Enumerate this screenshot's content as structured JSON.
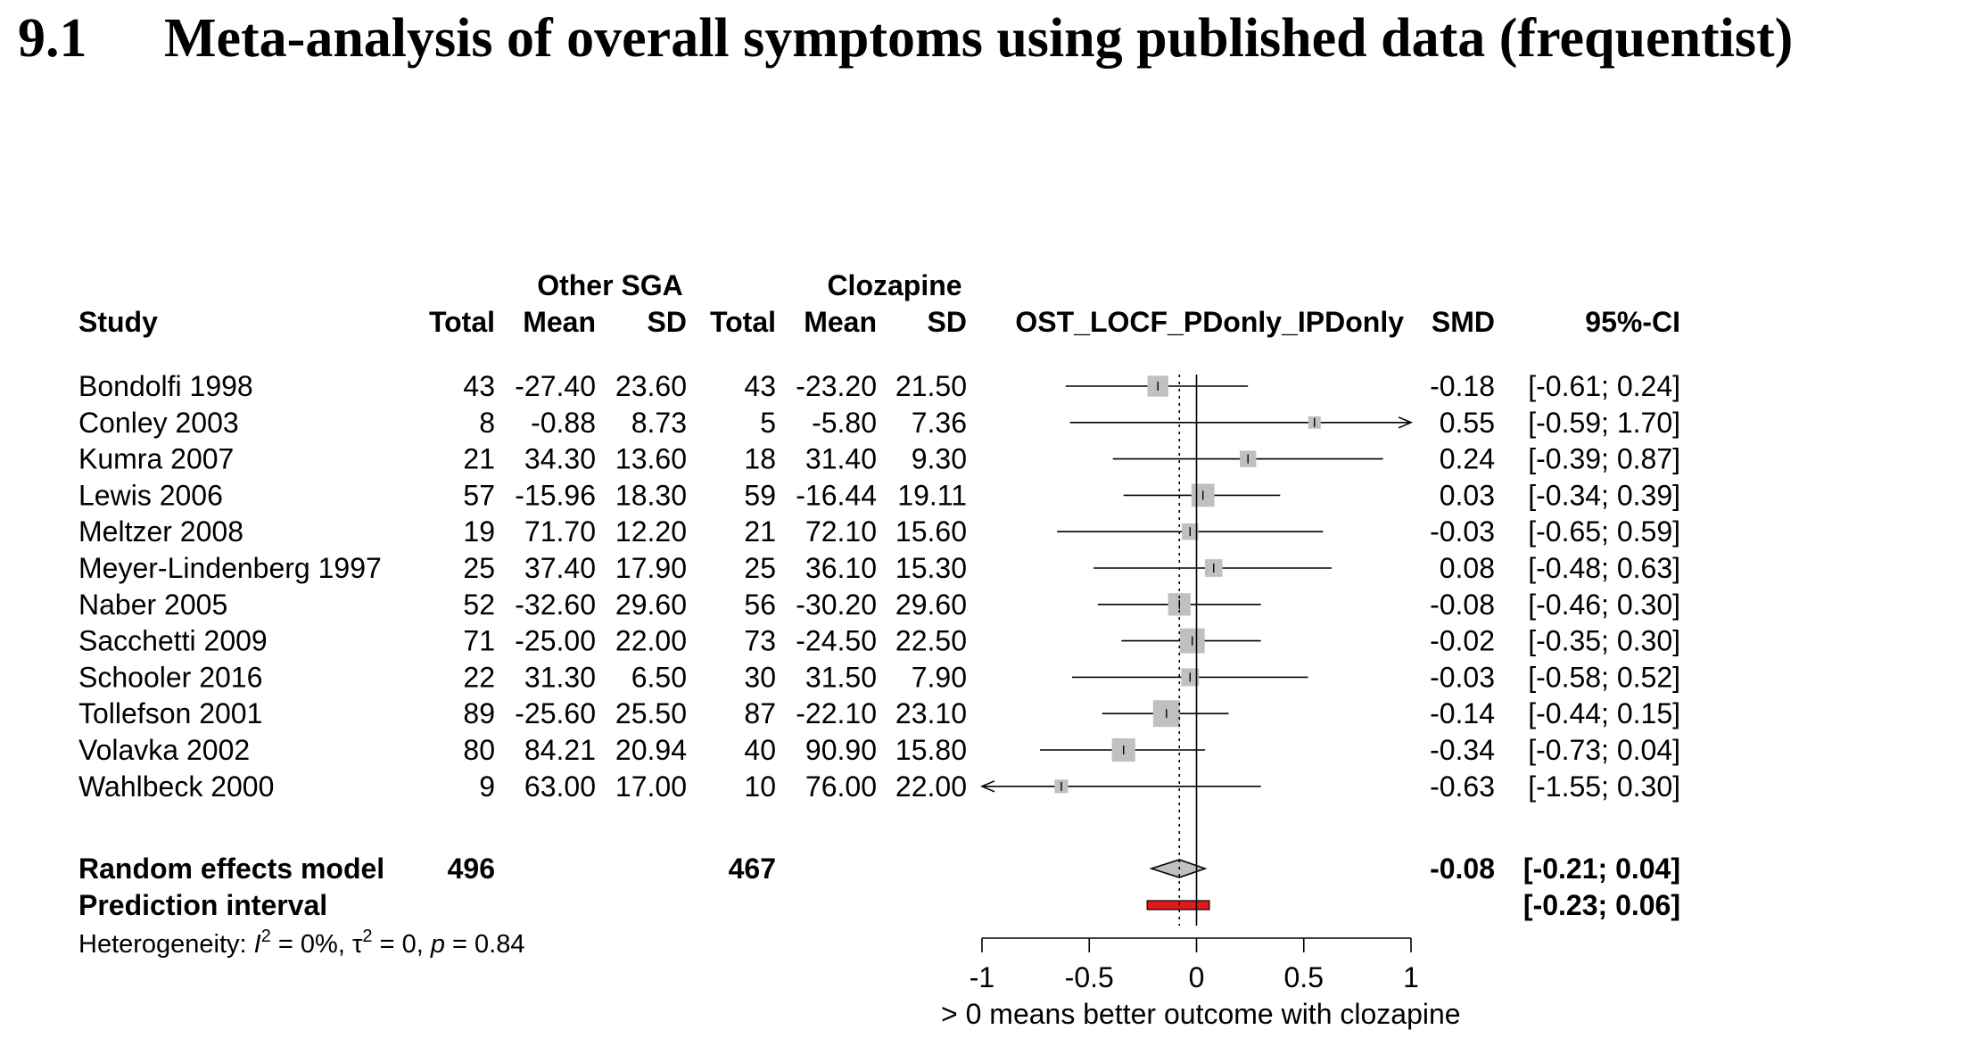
{
  "section": {
    "number": "9.1",
    "title": "Meta-analysis of overall symptoms using published data (frequentist)"
  },
  "chart_data": {
    "type": "forest",
    "group_headers": {
      "group1": "Other SGA",
      "group2": "Clozapine"
    },
    "column_headers": {
      "study": "Study",
      "total1": "Total",
      "mean1": "Mean",
      "sd1": "SD",
      "total2": "Total",
      "mean2": "Mean",
      "sd2": "SD",
      "plot": "OST_LOCF_PDonly_IPDonly",
      "smd": "SMD",
      "ci": "95%-CI"
    },
    "studies": [
      {
        "study": "Bondolfi 1998",
        "total1": "43",
        "mean1": "-27.40",
        "sd1": "23.60",
        "total2": "43",
        "mean2": "-23.20",
        "sd2": "21.50",
        "smd_label": "-0.18",
        "ci_label": "[-0.61; 0.24]",
        "smd": -0.18,
        "lower": -0.61,
        "upper": 0.24
      },
      {
        "study": "Conley 2003",
        "total1": "8",
        "mean1": "-0.88",
        "sd1": "8.73",
        "total2": "5",
        "mean2": "-5.80",
        "sd2": "7.36",
        "smd_label": "0.55",
        "ci_label": "[-0.59; 1.70]",
        "smd": 0.55,
        "lower": -0.59,
        "upper": 1.7
      },
      {
        "study": "Kumra 2007",
        "total1": "21",
        "mean1": "34.30",
        "sd1": "13.60",
        "total2": "18",
        "mean2": "31.40",
        "sd2": "9.30",
        "smd_label": "0.24",
        "ci_label": "[-0.39; 0.87]",
        "smd": 0.24,
        "lower": -0.39,
        "upper": 0.87
      },
      {
        "study": "Lewis 2006",
        "total1": "57",
        "mean1": "-15.96",
        "sd1": "18.30",
        "total2": "59",
        "mean2": "-16.44",
        "sd2": "19.11",
        "smd_label": "0.03",
        "ci_label": "[-0.34; 0.39]",
        "smd": 0.03,
        "lower": -0.34,
        "upper": 0.39
      },
      {
        "study": "Meltzer 2008",
        "total1": "19",
        "mean1": "71.70",
        "sd1": "12.20",
        "total2": "21",
        "mean2": "72.10",
        "sd2": "15.60",
        "smd_label": "-0.03",
        "ci_label": "[-0.65; 0.59]",
        "smd": -0.03,
        "lower": -0.65,
        "upper": 0.59
      },
      {
        "study": "Meyer-Lindenberg 1997",
        "total1": "25",
        "mean1": "37.40",
        "sd1": "17.90",
        "total2": "25",
        "mean2": "36.10",
        "sd2": "15.30",
        "smd_label": "0.08",
        "ci_label": "[-0.48; 0.63]",
        "smd": 0.08,
        "lower": -0.48,
        "upper": 0.63
      },
      {
        "study": "Naber 2005",
        "total1": "52",
        "mean1": "-32.60",
        "sd1": "29.60",
        "total2": "56",
        "mean2": "-30.20",
        "sd2": "29.60",
        "smd_label": "-0.08",
        "ci_label": "[-0.46; 0.30]",
        "smd": -0.08,
        "lower": -0.46,
        "upper": 0.3
      },
      {
        "study": "Sacchetti 2009",
        "total1": "71",
        "mean1": "-25.00",
        "sd1": "22.00",
        "total2": "73",
        "mean2": "-24.50",
        "sd2": "22.50",
        "smd_label": "-0.02",
        "ci_label": "[-0.35; 0.30]",
        "smd": -0.02,
        "lower": -0.35,
        "upper": 0.3
      },
      {
        "study": "Schooler 2016",
        "total1": "22",
        "mean1": "31.30",
        "sd1": "6.50",
        "total2": "30",
        "mean2": "31.50",
        "sd2": "7.90",
        "smd_label": "-0.03",
        "ci_label": "[-0.58; 0.52]",
        "smd": -0.03,
        "lower": -0.58,
        "upper": 0.52
      },
      {
        "study": "Tollefson 2001",
        "total1": "89",
        "mean1": "-25.60",
        "sd1": "25.50",
        "total2": "87",
        "mean2": "-22.10",
        "sd2": "23.10",
        "smd_label": "-0.14",
        "ci_label": "[-0.44; 0.15]",
        "smd": -0.14,
        "lower": -0.44,
        "upper": 0.15
      },
      {
        "study": "Volavka 2002",
        "total1": "80",
        "mean1": "84.21",
        "sd1": "20.94",
        "total2": "40",
        "mean2": "90.90",
        "sd2": "15.80",
        "smd_label": "-0.34",
        "ci_label": "[-0.73; 0.04]",
        "smd": -0.34,
        "lower": -0.73,
        "upper": 0.04
      },
      {
        "study": "Wahlbeck 2000",
        "total1": "9",
        "mean1": "63.00",
        "sd1": "17.00",
        "total2": "10",
        "mean2": "76.00",
        "sd2": "22.00",
        "smd_label": "-0.63",
        "ci_label": "[-1.55; 0.30]",
        "smd": -0.63,
        "lower": -1.55,
        "upper": 0.3
      }
    ],
    "random_effects": {
      "label": "Random effects model",
      "total1": "496",
      "total2": "467",
      "smd_label": "-0.08",
      "ci_label": "[-0.21; 0.04]",
      "smd": -0.08,
      "lower": -0.21,
      "upper": 0.04
    },
    "prediction_interval": {
      "label": "Prediction interval",
      "ci_label": "[-0.23; 0.06]",
      "lower": -0.23,
      "upper": 0.06
    },
    "heterogeneity": {
      "prefix": "Heterogeneity: ",
      "i2_symbol": "I",
      "i2_sup": "2",
      "i2_value": " = 0%, ",
      "tau_symbol": "τ",
      "tau_sup": "2",
      "tau_value": " = 0, ",
      "p_symbol": "p",
      "p_value": " = 0.84"
    },
    "x_axis": {
      "range": [
        -1,
        1
      ],
      "ticks": [
        -1,
        -0.5,
        0,
        0.5,
        1
      ],
      "tick_labels": [
        "-1",
        "-0.5",
        "0",
        "0.5",
        "1"
      ],
      "label": "> 0 means better outcome with clozapine"
    },
    "reference_line": 0,
    "colors": {
      "square": "#c0c0c0",
      "diamond": "#c0c0c0",
      "prediction": "#e31a1c",
      "text": "#000000"
    }
  }
}
